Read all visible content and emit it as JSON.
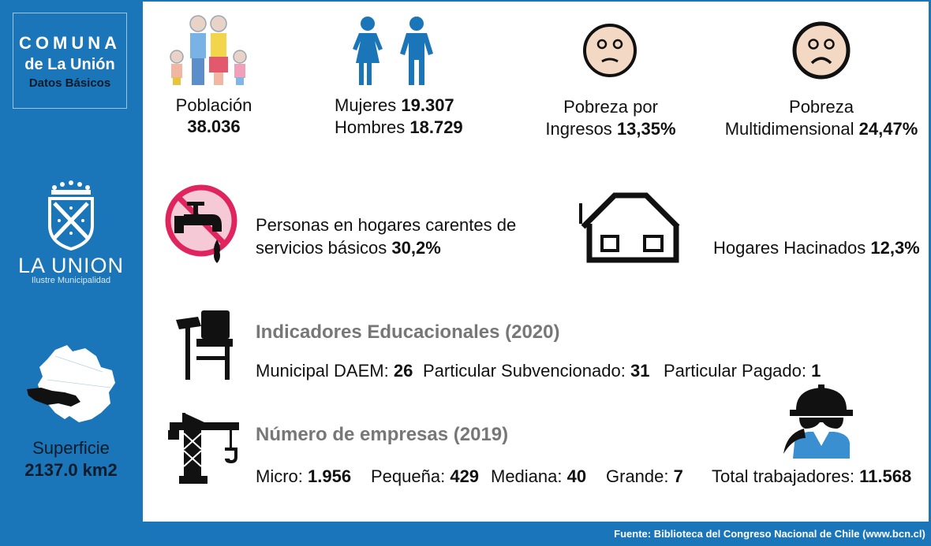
{
  "sidebar": {
    "title_line1": "COMUNA",
    "title_line2": "de La Unión",
    "title_line3": "Datos Básicos",
    "municipality_name": "LA UNION",
    "municipality_sub": "Ilustre Municipalidad",
    "surface_label": "Superficie",
    "surface_value": "2137.0 km2"
  },
  "stats": {
    "population_label": "Población",
    "population_value": "38.036",
    "women_label": "Mujeres",
    "women_value": "19.307",
    "men_label": "Hombres",
    "men_value": "18.729",
    "poverty_income_line1": "Pobreza por",
    "poverty_income_label": "Ingresos",
    "poverty_income_value": "13,35%",
    "poverty_multi_line1": "Pobreza",
    "poverty_multi_label": "Multidimensional",
    "poverty_multi_value": "24,47%",
    "services_line1": "Personas en hogares carentes de",
    "services_label": "servicios básicos",
    "services_value": "30,2%",
    "overcrowding_label": "Hogares Hacinados",
    "overcrowding_value": "12,3%"
  },
  "education": {
    "heading": "Indicadores Educacionales (2020)",
    "municipal_label": "Municipal DAEM:",
    "municipal_value": "26",
    "subsidized_label": "Particular Subvencionado:",
    "subsidized_value": "31",
    "paid_label": "Particular Pagado:",
    "paid_value": "1"
  },
  "companies": {
    "heading": "Número de empresas (2019)",
    "micro_label": "Micro:",
    "micro_value": "1.956",
    "small_label": "Pequeña:",
    "small_value": "429",
    "medium_label": "Mediana:",
    "medium_value": "40",
    "large_label": "Grande:",
    "large_value": "7",
    "workers_label": "Total trabajadores:",
    "workers_value": "11.568"
  },
  "footer": "Fuente: Biblioteca del Congreso Nacional de Chile (www.bcn.cl)",
  "icons": [
    "family-icon",
    "women-men-icon",
    "sad-face-icon",
    "frown-face-icon",
    "no-water-tap-icon",
    "house-icon",
    "school-desk-icon",
    "crane-icon",
    "worker-icon",
    "municipal-crest-icon",
    "commune-map-icon"
  ],
  "colors": {
    "sidebar": "#1a76b8",
    "panel": "#ffffff",
    "text": "#111111",
    "heading": "#777777",
    "person": "#1a76b8",
    "forbidden": "#e0245e",
    "face": "#f3d9c4"
  }
}
